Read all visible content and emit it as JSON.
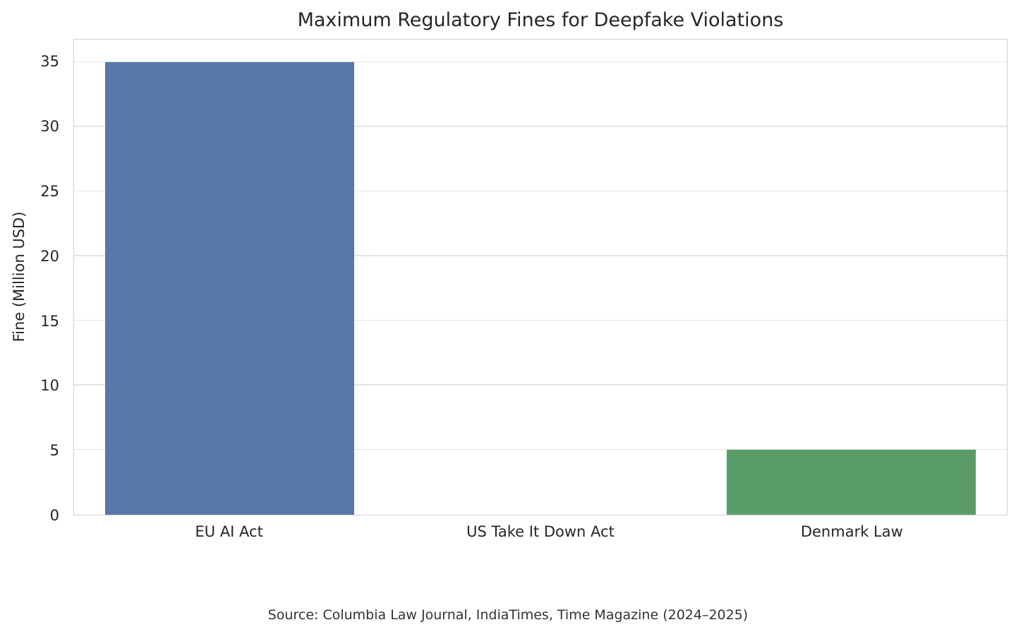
{
  "chart_data": {
    "type": "bar",
    "title": "Maximum Regulatory Fines for Deepfake Violations",
    "xlabel": "",
    "ylabel": "Fine (Million USD)",
    "categories": [
      "EU AI Act",
      "US Take It Down Act",
      "Denmark Law"
    ],
    "values": [
      35,
      0,
      5
    ],
    "bar_colors": [
      "#5878a8",
      "#dd8452",
      "#5a9c68"
    ],
    "yticks": [
      0,
      5,
      10,
      15,
      20,
      25,
      30,
      35
    ],
    "ylim": [
      0,
      36.75
    ],
    "grid": "horizontal",
    "legend": "none",
    "source": "Source: Columbia Law Journal, IndiaTimes, Time Magazine (2024–2025)"
  },
  "style": {
    "grid_color": "#e4e4e4",
    "border_color": "#cfcfcf",
    "text_color": "#262626",
    "background": "#ffffff"
  }
}
